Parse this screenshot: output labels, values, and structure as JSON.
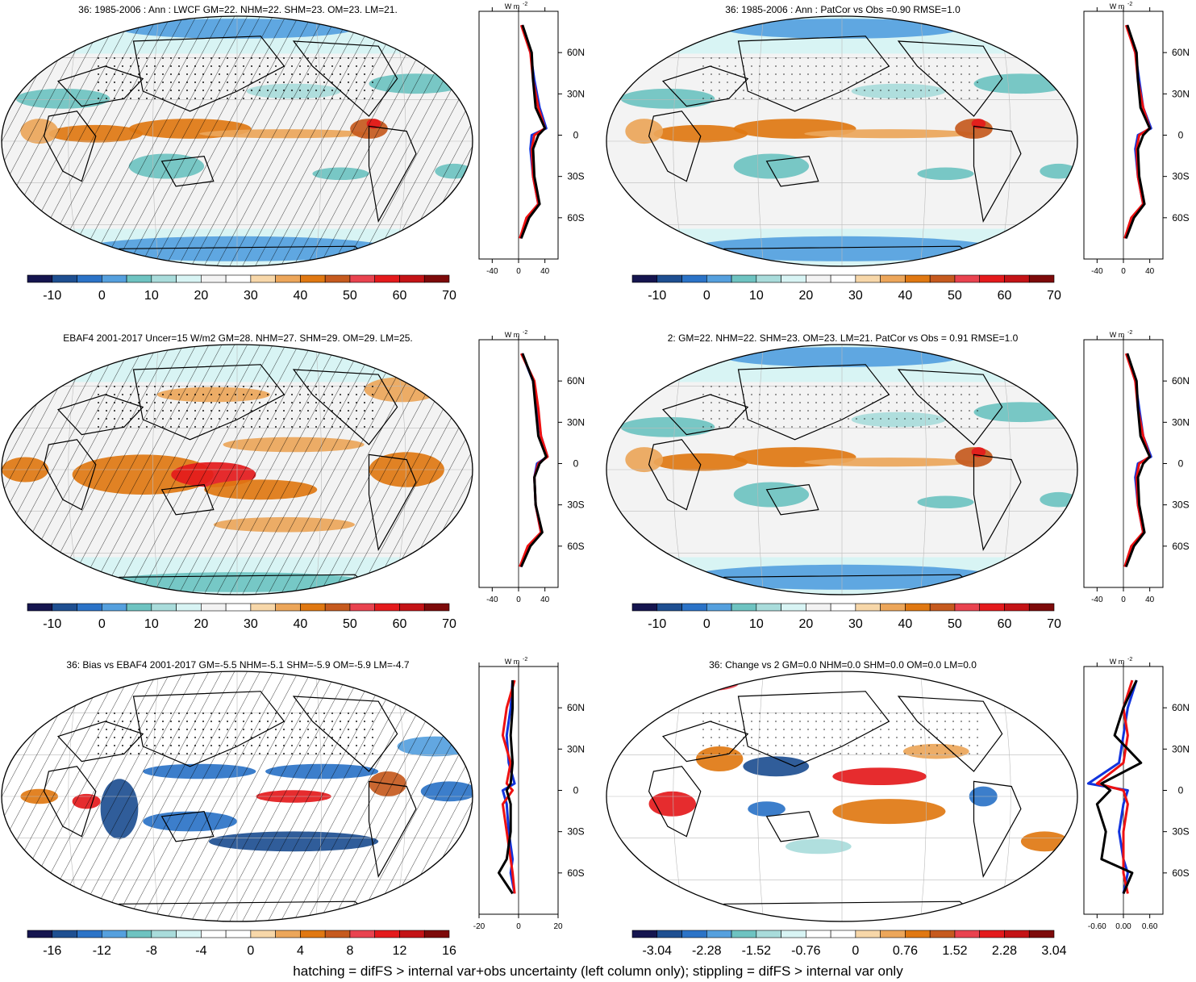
{
  "colors": {
    "palette": [
      "#15154f",
      "#1e4f91",
      "#2b73c7",
      "#55a0de",
      "#6ec3c1",
      "#a9dcdb",
      "#d8f4f4",
      "#f3f3f3",
      "#ffffff",
      "#f7d7a9",
      "#eca65a",
      "#e07812",
      "#c65a1e",
      "#e9434f",
      "#e41a1c",
      "#c41316",
      "#7d0a0a"
    ],
    "palette_diff": [
      "#15154f",
      "#1e4f91",
      "#2b73c7",
      "#55a0de",
      "#6ec3c1",
      "#a9dcdb",
      "#d8f4f4",
      "#ffffff",
      "#ffffff",
      "#f7d7a9",
      "#eca65a",
      "#e07812",
      "#c65a1e",
      "#e9434f",
      "#e41a1c",
      "#c41316",
      "#7d0a0a"
    ],
    "line_red": "#ee1111",
    "line_blue": "#1133dd",
    "line_black": "#000000"
  },
  "panels": [
    {
      "title": "36: 1985-2006 : Ann : LWCF GM=22. NHM=22. SHM=23. OM=23. LM=21.",
      "colorbar": {
        "labels": [
          "-10",
          "0",
          "10",
          "20",
          "30",
          "40",
          "50",
          "60",
          "70"
        ]
      },
      "profile": {
        "xticks": [
          "-40",
          "0",
          "40"
        ],
        "unit": "W m",
        "unit_sup": "-2"
      }
    },
    {
      "title": "36: 1985-2006 : Ann : PatCor vs Obs =0.90 RMSE=1.0",
      "colorbar": {
        "labels": [
          "-10",
          "0",
          "10",
          "20",
          "30",
          "40",
          "50",
          "60",
          "70"
        ]
      },
      "profile": {
        "xticks": [
          "-40",
          "0",
          "40"
        ],
        "unit": "W m",
        "unit_sup": "-2"
      }
    },
    {
      "title": "EBAF4 2001-2017 Uncer=15 W/m2 GM=28. NHM=27. SHM=29. OM=29. LM=25.",
      "colorbar": {
        "labels": [
          "-10",
          "0",
          "10",
          "20",
          "30",
          "40",
          "50",
          "60",
          "70"
        ]
      },
      "profile": {
        "xticks": [
          "-40",
          "0",
          "40"
        ],
        "unit": "W m",
        "unit_sup": "-2"
      }
    },
    {
      "title": "2: GM=22. NHM=22. SHM=23. OM=23. LM=21. PatCor vs Obs = 0.91 RMSE=1.0",
      "colorbar": {
        "labels": [
          "-10",
          "0",
          "10",
          "20",
          "30",
          "40",
          "50",
          "60",
          "70"
        ]
      },
      "profile": {
        "xticks": [
          "-40",
          "0",
          "40"
        ],
        "unit": "W m",
        "unit_sup": "-2"
      }
    },
    {
      "title": "36: Bias vs EBAF4 2001-2017 GM=-5.5 NHM=-5.1 SHM=-5.9 OM=-5.9 LM=-4.7",
      "colorbar": {
        "labels": [
          "-16",
          "-12",
          "-8",
          "-4",
          "0",
          "4",
          "8",
          "12",
          "16"
        ]
      },
      "profile": {
        "xticks": [
          "-20",
          "0",
          "20"
        ],
        "unit": "W m",
        "unit_sup": "-2"
      }
    },
    {
      "title": "36: Change vs 2 GM=0.0 NHM=0.0 SHM=0.0 OM=0.0 LM=0.0",
      "colorbar": {
        "labels": [
          "-3.04",
          "-2.28",
          "-1.52",
          "-0.76",
          "0",
          "0.76",
          "1.52",
          "2.28",
          "3.04"
        ]
      },
      "profile": {
        "xticks": [
          "-0.60",
          "0.00",
          "0.60"
        ],
        "unit": "W m",
        "unit_sup": "-2"
      }
    }
  ],
  "lat_labels": [
    "60N",
    "30N",
    "0",
    "30S",
    "60S"
  ],
  "footer": "hatching = difFS > internal var+obs uncertainty (left column only); stippling = difFS > internal var only",
  "chart_data": [
    {
      "type": "heatmap",
      "title": "36: 1985-2006 : Ann : LWCF GM=22. NHM=22. SHM=23. OM=23. LM=21.",
      "colorbar": [
        -10,
        0,
        10,
        20,
        30,
        40,
        50,
        60,
        70
      ],
      "zonal_mean": {
        "lat": [
          80,
          60,
          40,
          20,
          5,
          0,
          -10,
          -30,
          -50,
          -60,
          -75
        ],
        "series": [
          {
            "values": [
              5,
              18,
              24,
              32,
              42,
              20,
              18,
              22,
              30,
              14,
              3
            ]
          },
          {
            "values": [
              4,
              18,
              22,
              30,
              40,
              24,
              20,
              22,
              30,
              12,
              2
            ]
          },
          {
            "values": [
              6,
              20,
              22,
              26,
              40,
              30,
              22,
              24,
              32,
              16,
              4
            ]
          }
        ]
      }
    },
    {
      "type": "heatmap",
      "title": "36: 1985-2006 : Ann : PatCor vs Obs =0.90 RMSE=1.0",
      "colorbar": [
        -10,
        0,
        10,
        20,
        30,
        40,
        50,
        60,
        70
      ],
      "zonal_mean": {
        "lat": [
          80,
          60,
          40,
          20,
          5,
          0,
          -10,
          -30,
          -50,
          -60,
          -75
        ],
        "series": [
          {
            "values": [
              5,
              18,
              24,
              30,
              42,
              22,
              18,
              22,
              30,
              14,
              3
            ]
          },
          {
            "values": [
              4,
              18,
              22,
              30,
              40,
              24,
              20,
              22,
              30,
              12,
              2
            ]
          },
          {
            "values": [
              6,
              20,
              22,
              26,
              40,
              30,
              22,
              24,
              32,
              16,
              4
            ]
          }
        ]
      }
    },
    {
      "type": "heatmap",
      "title": "EBAF4 2001-2017 Uncer=15 W/m2 GM=28. NHM=27. SHM=29. OM=29. LM=25.",
      "colorbar": [
        -10,
        0,
        10,
        20,
        30,
        40,
        50,
        60,
        70
      ],
      "zonal_mean": {
        "lat": [
          80,
          60,
          40,
          20,
          5,
          0,
          -10,
          -30,
          -50,
          -60,
          -75
        ],
        "series": [
          {
            "values": [
              5,
              22,
              28,
              34,
              44,
              28,
              24,
              26,
              34,
              16,
              3
            ]
          },
          {
            "values": [
              4,
              24,
              30,
              34,
              44,
              30,
              24,
              26,
              34,
              14,
              2
            ]
          },
          {
            "values": [
              6,
              22,
              26,
              30,
              42,
              32,
              24,
              26,
              36,
              18,
              4
            ]
          }
        ]
      }
    },
    {
      "type": "heatmap",
      "title": "2: GM=22. NHM=22. SHM=23. OM=23. LM=21. PatCor vs Obs = 0.91 RMSE=1.0",
      "colorbar": [
        -10,
        0,
        10,
        20,
        30,
        40,
        50,
        60,
        70
      ],
      "zonal_mean": {
        "lat": [
          80,
          60,
          40,
          20,
          5,
          0,
          -10,
          -30,
          -50,
          -60,
          -75
        ],
        "series": [
          {
            "values": [
              5,
              18,
              24,
              30,
              42,
              22,
              18,
              22,
              30,
              14,
              3
            ]
          },
          {
            "values": [
              4,
              18,
              22,
              30,
              40,
              24,
              20,
              22,
              30,
              12,
              2
            ]
          },
          {
            "values": [
              6,
              20,
              22,
              26,
              40,
              30,
              22,
              24,
              32,
              16,
              4
            ]
          }
        ]
      }
    },
    {
      "type": "heatmap",
      "title": "36: Bias vs EBAF4 2001-2017 GM=-5.5 NHM=-5.1 SHM=-5.9 OM=-5.9 LM=-4.7",
      "colorbar": [
        -16,
        -12,
        -8,
        -4,
        0,
        4,
        8,
        12,
        16
      ],
      "zonal_mean": {
        "lat": [
          80,
          60,
          40,
          20,
          5,
          0,
          -10,
          -30,
          -50,
          -60,
          -75
        ],
        "series": [
          {
            "values": [
              -3,
              -4,
              -6,
              -5,
              -2,
              -8,
              -6,
              -5,
              -3,
              -4,
              -2
            ]
          },
          {
            "values": [
              -2,
              -6,
              -8,
              -4,
              -6,
              -3,
              -8,
              -6,
              -4,
              -3,
              -2
            ]
          },
          {
            "values": [
              -3,
              -3,
              -4,
              -3,
              -4,
              -6,
              -4,
              -4,
              -6,
              -10,
              -3
            ]
          }
        ]
      }
    },
    {
      "type": "heatmap",
      "title": "36: Change vs 2 GM=0.0 NHM=0.0 SHM=0.0 OM=0.0 LM=0.0",
      "colorbar": [
        -3.04,
        -2.28,
        -1.52,
        -0.76,
        0,
        0.76,
        1.52,
        2.28,
        3.04
      ],
      "zonal_mean": {
        "lat": [
          80,
          60,
          40,
          20,
          5,
          0,
          -10,
          -30,
          -50,
          -60,
          -75
        ],
        "series": [
          {
            "values": [
              0.3,
              0.1,
              0.0,
              -0.1,
              -0.8,
              0.1,
              0.0,
              -0.1,
              0.0,
              0.1,
              0.0
            ]
          },
          {
            "values": [
              0.2,
              0.0,
              0.1,
              0.0,
              -0.6,
              0.0,
              0.1,
              0.0,
              0.0,
              0.0,
              0.1
            ]
          },
          {
            "values": [
              0.3,
              0.0,
              -0.2,
              0.4,
              -0.5,
              -0.3,
              -0.6,
              -0.4,
              -0.5,
              0.2,
              0.0
            ]
          }
        ]
      }
    }
  ]
}
